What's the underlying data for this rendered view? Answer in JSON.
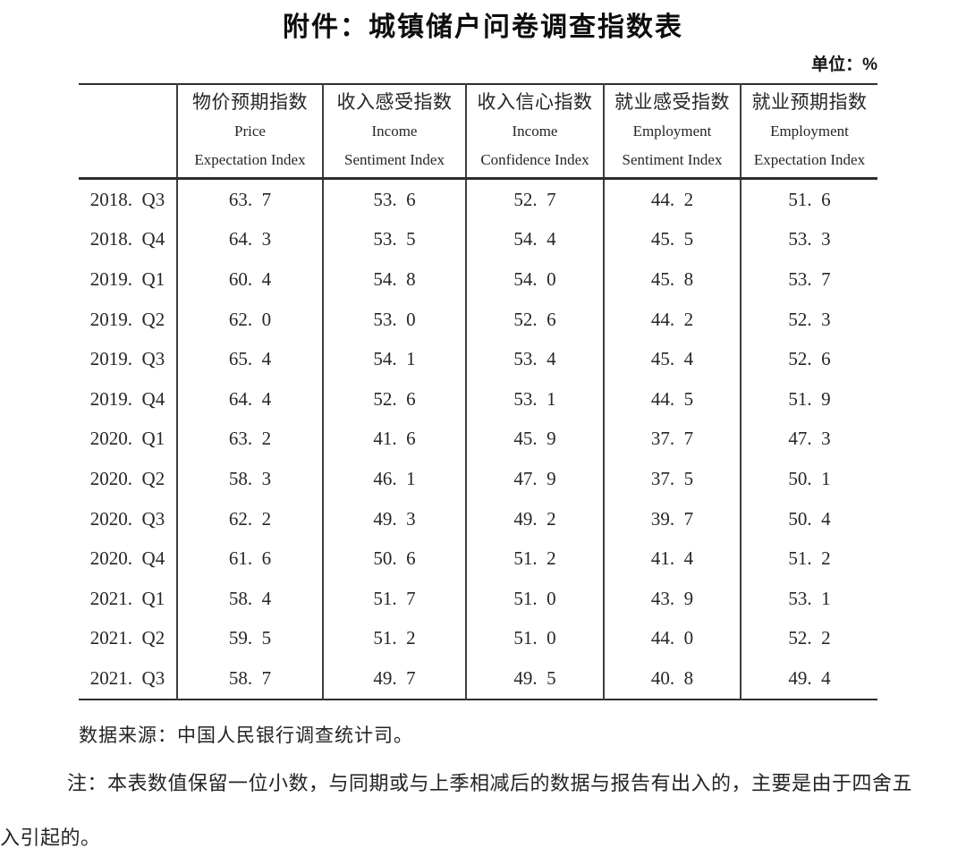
{
  "page": {
    "title": "附件：城镇储户问卷调查指数表",
    "unit_label": "单位：%",
    "source": "数据来源：中国人民银行调查统计司。",
    "note": "注：本表数值保留一位小数，与同期或与上季相减后的数据与报告有出入的，主要是由于四舍五入引起的。"
  },
  "table": {
    "corner_label": "",
    "columns": [
      {
        "cn": "物价预期指数",
        "en1": "Price",
        "en2": "Expectation Index"
      },
      {
        "cn": "收入感受指数",
        "en1": "Income",
        "en2": "Sentiment Index"
      },
      {
        "cn": "收入信心指数",
        "en1": "Income",
        "en2": "Confidence Index"
      },
      {
        "cn": "就业感受指数",
        "en1": "Employment",
        "en2": "Sentiment Index"
      },
      {
        "cn": "就业预期指数",
        "en1": "Employment",
        "en2": "Expectation Index"
      }
    ],
    "rows": [
      {
        "period": "2018.Q3",
        "values": [
          "63.7",
          "53.6",
          "52.7",
          "44.2",
          "51.6"
        ]
      },
      {
        "period": "2018.Q4",
        "values": [
          "64.3",
          "53.5",
          "54.4",
          "45.5",
          "53.3"
        ]
      },
      {
        "period": "2019.Q1",
        "values": [
          "60.4",
          "54.8",
          "54.0",
          "45.8",
          "53.7"
        ]
      },
      {
        "period": "2019.Q2",
        "values": [
          "62.0",
          "53.0",
          "52.6",
          "44.2",
          "52.3"
        ]
      },
      {
        "period": "2019.Q3",
        "values": [
          "65.4",
          "54.1",
          "53.4",
          "45.4",
          "52.6"
        ]
      },
      {
        "period": "2019.Q4",
        "values": [
          "64.4",
          "52.6",
          "53.1",
          "44.5",
          "51.9"
        ]
      },
      {
        "period": "2020.Q1",
        "values": [
          "63.2",
          "41.6",
          "45.9",
          "37.7",
          "47.3"
        ]
      },
      {
        "period": "2020.Q2",
        "values": [
          "58.3",
          "46.1",
          "47.9",
          "37.5",
          "50.1"
        ]
      },
      {
        "period": "2020.Q3",
        "values": [
          "62.2",
          "49.3",
          "49.2",
          "39.7",
          "50.4"
        ]
      },
      {
        "period": "2020.Q4",
        "values": [
          "61.6",
          "50.6",
          "51.2",
          "41.4",
          "51.2"
        ]
      },
      {
        "period": "2021.Q1",
        "values": [
          "58.4",
          "51.7",
          "51.0",
          "43.9",
          "53.1"
        ]
      },
      {
        "period": "2021.Q2",
        "values": [
          "59.5",
          "51.2",
          "51.0",
          "44.0",
          "52.2"
        ]
      },
      {
        "period": "2021.Q3",
        "values": [
          "58.7",
          "49.7",
          "49.5",
          "40.8",
          "49.4"
        ]
      }
    ]
  },
  "colors": {
    "text": "#1f1f1f",
    "border_heavy": "#2e2e2e",
    "border_light": "#3d3d3d",
    "background": "#ffffff"
  }
}
